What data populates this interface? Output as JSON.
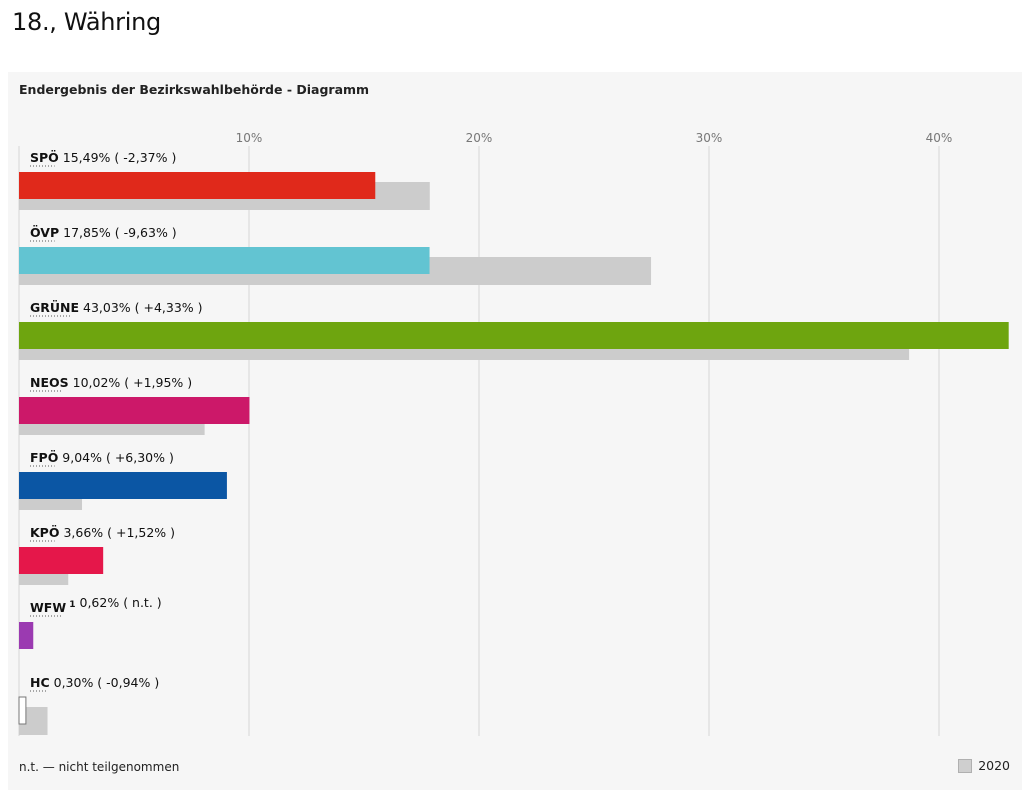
{
  "page": {
    "title": "18., Währing"
  },
  "panel": {
    "title": "Endergebnis der Bezirkswahlbehörde - Diagramm",
    "footnote": "n.t. — nicht teilgenommen",
    "legend_label": "2020"
  },
  "chart_data": {
    "type": "bar",
    "orientation": "horizontal",
    "title": "Endergebnis der Bezirkswahlbehörde - Diagramm",
    "xlim": [
      0,
      43
    ],
    "x_ticks": [
      10,
      20,
      30,
      40
    ],
    "x_tick_labels": [
      "10%",
      "20%",
      "30%",
      "40%"
    ],
    "grid": true,
    "legend_position": "bottom-right",
    "categories": [
      "SPÖ",
      "ÖVP",
      "GRÜNE",
      "NEOS",
      "FPÖ",
      "KPÖ",
      "WFW",
      "HC"
    ],
    "series": [
      {
        "name": "",
        "values": [
          15.49,
          17.85,
          43.03,
          10.02,
          9.04,
          3.66,
          0.62,
          0.3
        ],
        "colors": [
          "#e0291b",
          "#62c4d2",
          "#6ea50f",
          "#cc1869",
          "#0b56a4",
          "#e5174a",
          "#9b3ab1",
          "#ffffff"
        ]
      },
      {
        "name": "2020",
        "values": [
          17.86,
          27.48,
          38.7,
          8.07,
          2.74,
          2.14,
          null,
          1.24
        ],
        "color": "#cccccc"
      }
    ],
    "labels": [
      {
        "party": "SPÖ",
        "sup": "",
        "value": "15,49%",
        "change": "( -2,37% )"
      },
      {
        "party": "ÖVP",
        "sup": "",
        "value": "17,85%",
        "change": "( -9,63% )"
      },
      {
        "party": "GRÜNE",
        "sup": "",
        "value": "43,03%",
        "change": "( +4,33% )"
      },
      {
        "party": "NEOS",
        "sup": "",
        "value": "10,02%",
        "change": "( +1,95% )"
      },
      {
        "party": "FPÖ",
        "sup": "",
        "value": "9,04%",
        "change": "( +6,30% )"
      },
      {
        "party": "KPÖ",
        "sup": "",
        "value": "3,66%",
        "change": "( +1,52% )"
      },
      {
        "party": "WFW",
        "sup": "1",
        "value": "0,62%",
        "change": "( n.t. )"
      },
      {
        "party": "HC",
        "sup": "",
        "value": "0,30%",
        "change": "( -0,94% )"
      }
    ]
  }
}
